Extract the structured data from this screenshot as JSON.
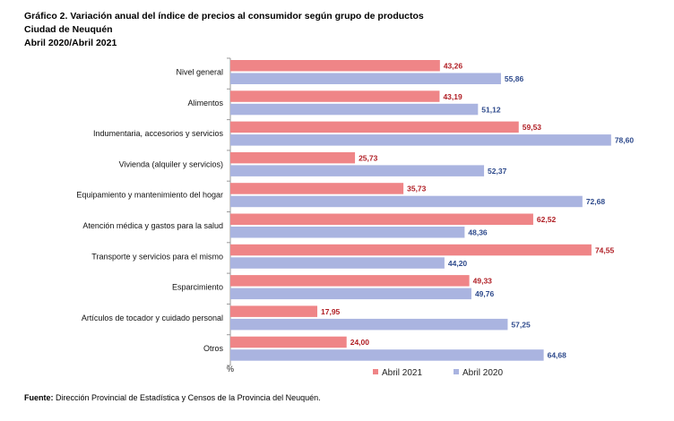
{
  "header": {
    "title": "Gráfico 2. Variación anual del índice de precios al consumidor según grupo de productos",
    "subtitle": "Ciudad de Neuquén",
    "period": "Abril 2020/Abril 2021"
  },
  "source": {
    "label": "Fuente:",
    "text": "Dirección Provincial de Estadística y Censos de la Provincia del Neuquén."
  },
  "colors": {
    "series_2021": "#ef8587",
    "series_2020": "#aab4e0",
    "label_2021": "#b01e24",
    "label_2020": "#2e4a8c",
    "axis": "#999999"
  },
  "chart_data": {
    "type": "bar",
    "orientation": "horizontal",
    "title": "Gráfico 2. Variación anual del índice de precios al consumidor según grupo de productos",
    "xlabel": "%",
    "ylabel": "",
    "xlim": [
      0,
      80
    ],
    "grid": false,
    "legend_position": "bottom",
    "categories": [
      "Nivel general",
      "Alimentos",
      "Indumentaria, accesorios y servicios",
      "Vivienda (alquiler y servicios)",
      "Equipamiento y mantenimiento del hogar",
      "Atención médica y gastos para la salud",
      "Transporte y servicios para el mismo",
      "Esparcimiento",
      "Artículos de tocador y cuidado personal",
      "Otros"
    ],
    "series": [
      {
        "name": "Abril 2021",
        "values": [
          43.26,
          43.19,
          59.53,
          25.73,
          35.73,
          62.52,
          74.55,
          49.33,
          17.95,
          24.0
        ],
        "labels": [
          "43,26",
          "43,19",
          "59,53",
          "25,73",
          "35,73",
          "62,52",
          "74,55",
          "49,33",
          "17,95",
          "24,00"
        ]
      },
      {
        "name": "Abril 2020",
        "values": [
          55.86,
          51.12,
          78.6,
          52.37,
          72.68,
          48.36,
          44.2,
          49.76,
          57.25,
          64.68
        ],
        "labels": [
          "55,86",
          "51,12",
          "78,60",
          "52,37",
          "72,68",
          "48,36",
          "44,20",
          "49,76",
          "57,25",
          "64,68"
        ]
      }
    ]
  }
}
